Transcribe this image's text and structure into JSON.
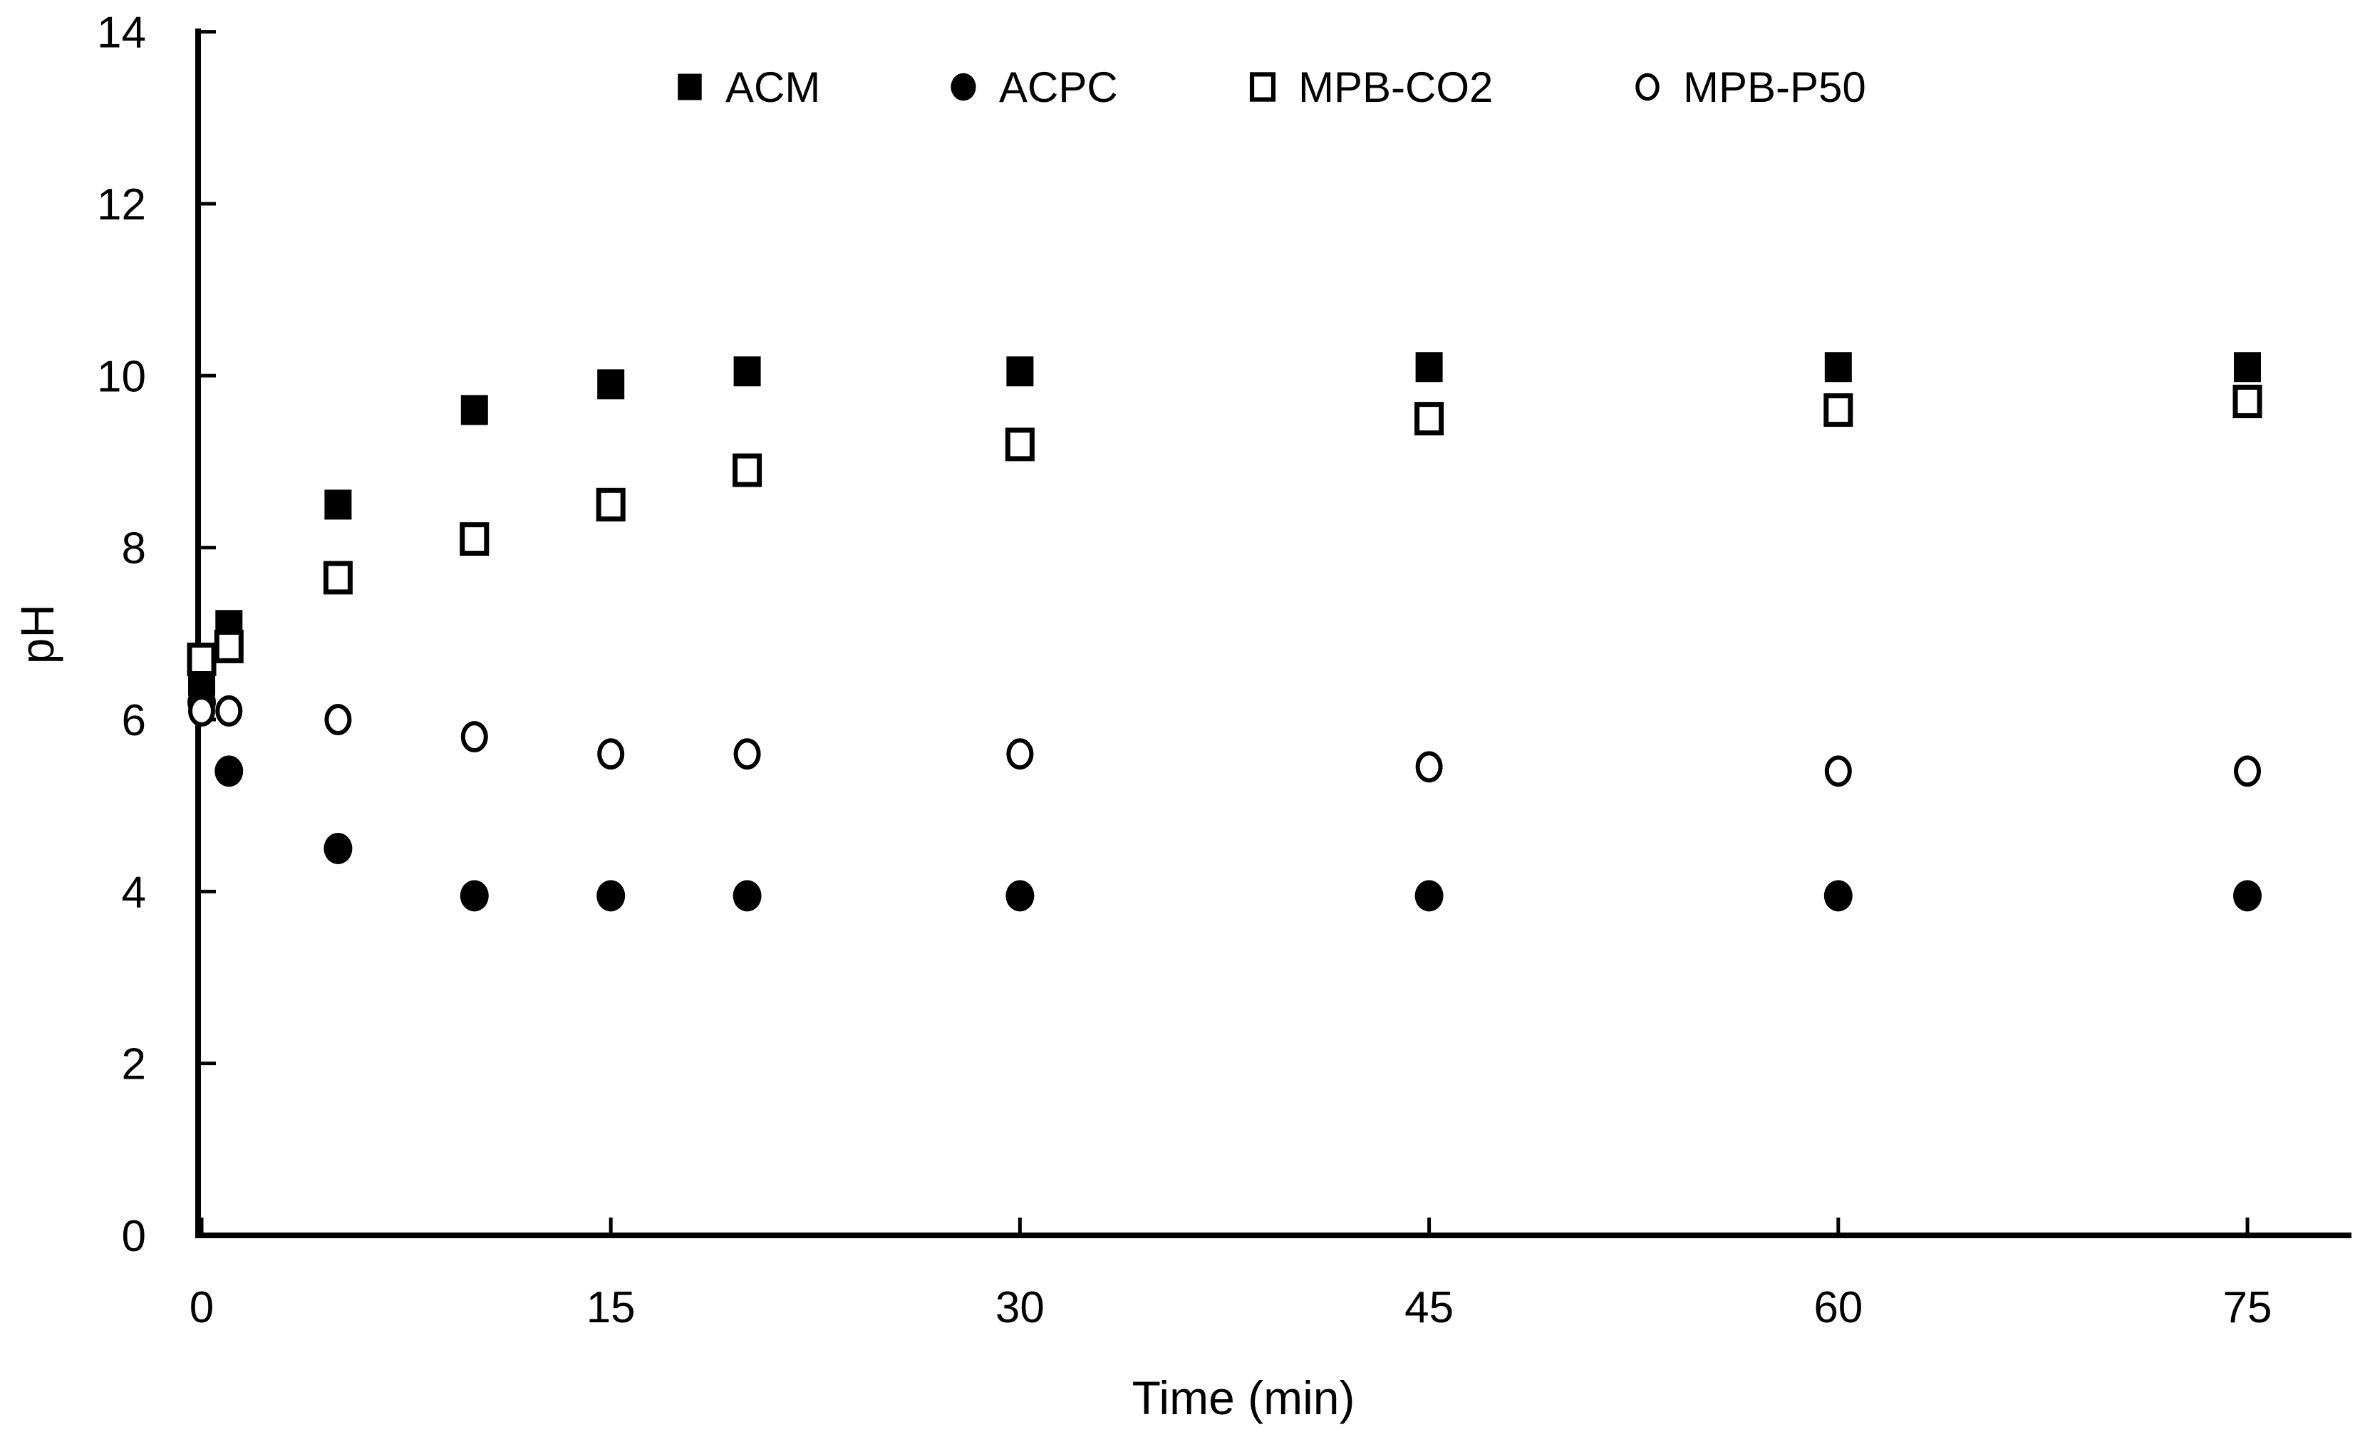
{
  "chart_data": {
    "type": "scatter",
    "title": "",
    "xlabel": "Time (min)",
    "ylabel": "pH",
    "xlim": [
      0,
      78.8
    ],
    "ylim": [
      0,
      14
    ],
    "xticks": [
      0,
      15,
      30,
      45,
      60,
      75
    ],
    "yticks": [
      0,
      2,
      4,
      6,
      8,
      10,
      12,
      14
    ],
    "grid": false,
    "legend_position": "top",
    "axis_color": "#000000",
    "background_color": "#ffffff",
    "x": [
      0,
      1,
      5,
      10,
      15,
      20,
      30,
      45,
      60,
      75
    ],
    "series": [
      {
        "name": "ACM",
        "marker": "filled-square-icon",
        "values": [
          6.45,
          7.1,
          8.5,
          9.6,
          9.9,
          10.05,
          10.05,
          10.1,
          10.1,
          10.1
        ]
      },
      {
        "name": "ACPC",
        "marker": "filled-circle-icon",
        "values": [
          6.2,
          5.4,
          4.5,
          3.95,
          3.95,
          3.95,
          3.95,
          3.95,
          3.95,
          3.95
        ]
      },
      {
        "name": "MPB-CO2",
        "marker": "open-square-icon",
        "values": [
          6.7,
          6.85,
          7.65,
          8.1,
          8.5,
          8.9,
          9.2,
          9.5,
          9.6,
          9.7
        ]
      },
      {
        "name": "MPB-P50",
        "marker": "open-circle-icon",
        "values": [
          6.1,
          6.1,
          6.0,
          5.8,
          5.6,
          5.6,
          5.6,
          5.45,
          5.4,
          5.4
        ]
      }
    ],
    "legend_order": [
      "ACM",
      "ACPC",
      "MPB-CO2",
      "MPB-P50"
    ]
  }
}
